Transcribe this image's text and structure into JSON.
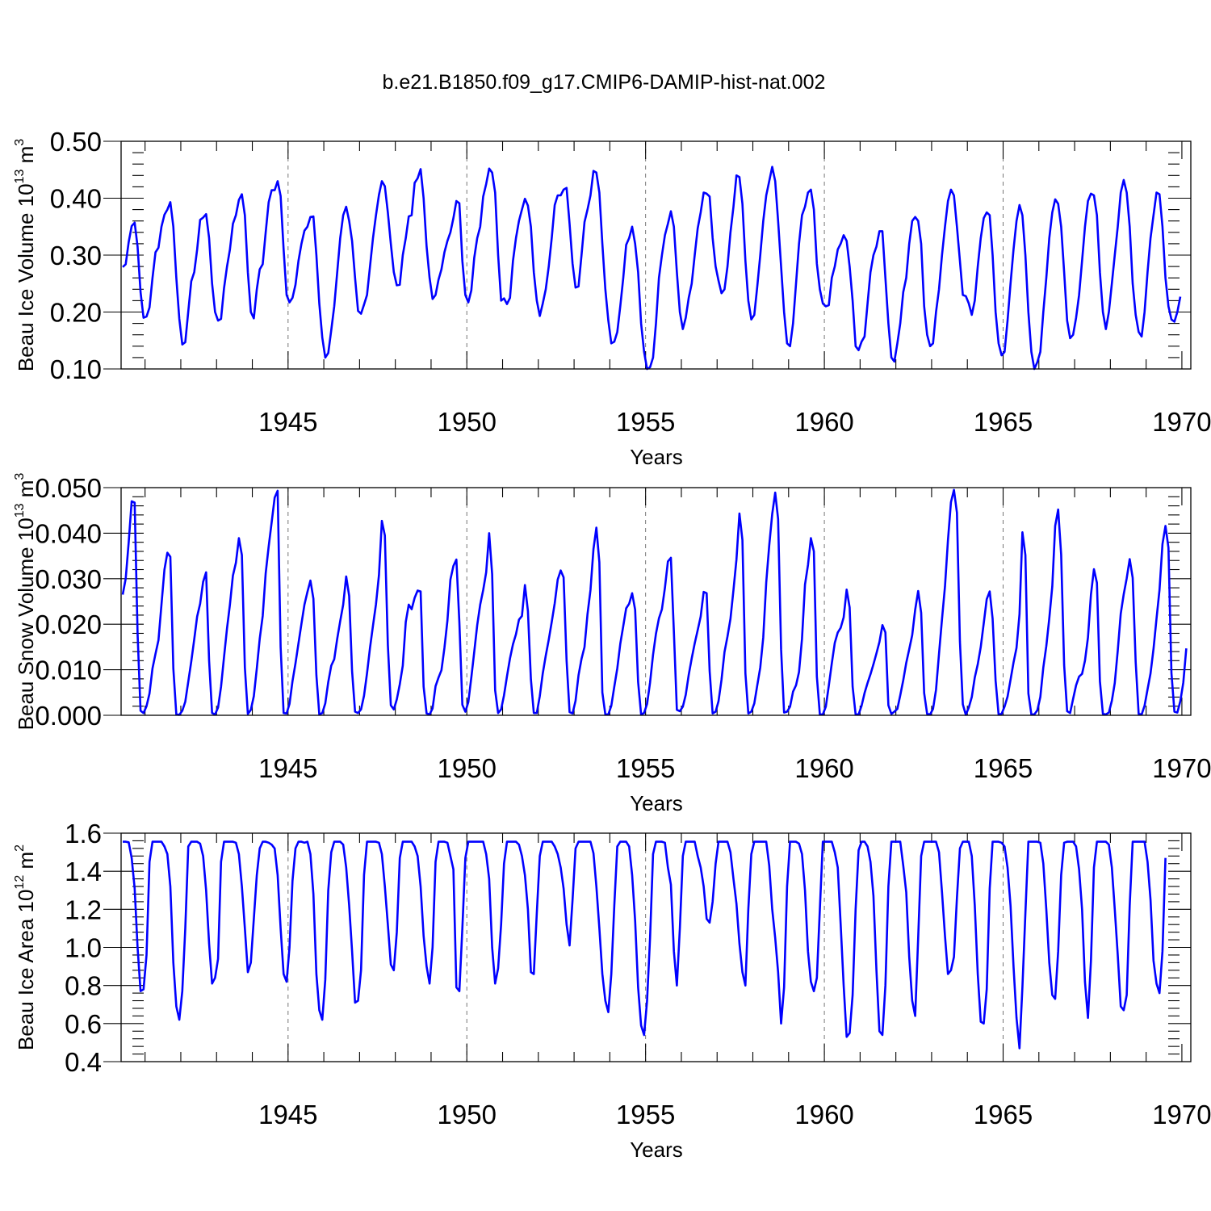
{
  "title": "b.e21.B1850.f09_g17.CMIP6-DAMIP-hist-nat.002",
  "chart_data": [
    {
      "type": "line",
      "id": "ice_volume",
      "title": "b.e21.B1850.f09_g17.CMIP6-DAMIP-hist-nat.002",
      "xlabel": "Years",
      "ylabel_main": "Beau Ice Volume 10",
      "ylabel_exp": "13",
      "ylabel_unit": " m",
      "ylabel_unit_exp": "3",
      "xlim": [
        1940.33,
        1970.25
      ],
      "ylim": [
        0.1,
        0.5
      ],
      "grid_x": [
        1945,
        1950,
        1955,
        1960,
        1965
      ],
      "xticks": [
        1945,
        1950,
        1955,
        1960,
        1965,
        1970
      ],
      "xtick_labels": [
        "1945",
        "1950",
        "1955",
        "1960",
        "1965",
        "1970"
      ],
      "yticks": [
        0.1,
        0.2,
        0.3,
        0.4,
        0.5
      ],
      "ytick_labels": [
        "0.10",
        "0.20",
        "0.30",
        "0.40",
        "0.50"
      ],
      "x_start": 1940.375,
      "x_step": 0.08333,
      "values": [
        0.279,
        0.284,
        0.323,
        0.351,
        0.357,
        0.315,
        0.235,
        0.19,
        0.192,
        0.208,
        0.26,
        0.305,
        0.313,
        0.35,
        0.371,
        0.38,
        0.393,
        0.35,
        0.26,
        0.188,
        0.143,
        0.147,
        0.201,
        0.254,
        0.27,
        0.31,
        0.362,
        0.366,
        0.372,
        0.33,
        0.25,
        0.2,
        0.185,
        0.188,
        0.242,
        0.28,
        0.31,
        0.355,
        0.37,
        0.397,
        0.407,
        0.37,
        0.27,
        0.2,
        0.189,
        0.24,
        0.275,
        0.284,
        0.34,
        0.393,
        0.414,
        0.414,
        0.43,
        0.404,
        0.31,
        0.23,
        0.217,
        0.225,
        0.248,
        0.29,
        0.32,
        0.343,
        0.35,
        0.367,
        0.368,
        0.3,
        0.215,
        0.155,
        0.12,
        0.128,
        0.168,
        0.21,
        0.27,
        0.33,
        0.37,
        0.385,
        0.36,
        0.325,
        0.26,
        0.202,
        0.197,
        0.213,
        0.23,
        0.28,
        0.33,
        0.37,
        0.406,
        0.43,
        0.421,
        0.375,
        0.32,
        0.27,
        0.247,
        0.248,
        0.3,
        0.33,
        0.368,
        0.37,
        0.427,
        0.435,
        0.451,
        0.4,
        0.315,
        0.26,
        0.223,
        0.23,
        0.257,
        0.275,
        0.305,
        0.325,
        0.34,
        0.365,
        0.395,
        0.391,
        0.29,
        0.23,
        0.217,
        0.238,
        0.295,
        0.33,
        0.35,
        0.403,
        0.425,
        0.452,
        0.445,
        0.41,
        0.3,
        0.22,
        0.224,
        0.214,
        0.225,
        0.29,
        0.33,
        0.36,
        0.38,
        0.399,
        0.387,
        0.35,
        0.27,
        0.22,
        0.193,
        0.215,
        0.24,
        0.28,
        0.33,
        0.388,
        0.405,
        0.405,
        0.415,
        0.418,
        0.355,
        0.285,
        0.243,
        0.245,
        0.3,
        0.358,
        0.38,
        0.405,
        0.448,
        0.445,
        0.41,
        0.32,
        0.24,
        0.185,
        0.145,
        0.148,
        0.165,
        0.21,
        0.26,
        0.318,
        0.33,
        0.35,
        0.32,
        0.27,
        0.18,
        0.13,
        0.1,
        0.103,
        0.12,
        0.18,
        0.26,
        0.3,
        0.335,
        0.355,
        0.377,
        0.35,
        0.27,
        0.2,
        0.17,
        0.19,
        0.225,
        0.25,
        0.3,
        0.347,
        0.375,
        0.41,
        0.408,
        0.403,
        0.33,
        0.28,
        0.255,
        0.233,
        0.24,
        0.28,
        0.34,
        0.385,
        0.44,
        0.437,
        0.39,
        0.29,
        0.22,
        0.187,
        0.195,
        0.245,
        0.3,
        0.36,
        0.405,
        0.43,
        0.455,
        0.43,
        0.36,
        0.28,
        0.2,
        0.145,
        0.14,
        0.18,
        0.25,
        0.32,
        0.37,
        0.385,
        0.41,
        0.415,
        0.38,
        0.285,
        0.24,
        0.215,
        0.21,
        0.212,
        0.26,
        0.28,
        0.31,
        0.32,
        0.335,
        0.325,
        0.28,
        0.22,
        0.14,
        0.133,
        0.148,
        0.157,
        0.215,
        0.27,
        0.3,
        0.315,
        0.342,
        0.342,
        0.26,
        0.18,
        0.12,
        0.113,
        0.145,
        0.18,
        0.235,
        0.26,
        0.32,
        0.36,
        0.367,
        0.36,
        0.32,
        0.21,
        0.16,
        0.14,
        0.145,
        0.2,
        0.24,
        0.3,
        0.35,
        0.395,
        0.415,
        0.405,
        0.35,
        0.29,
        0.23,
        0.228,
        0.215,
        0.195,
        0.22,
        0.28,
        0.33,
        0.365,
        0.375,
        0.37,
        0.3,
        0.2,
        0.145,
        0.124,
        0.13,
        0.185,
        0.25,
        0.31,
        0.36,
        0.388,
        0.37,
        0.3,
        0.2,
        0.13,
        0.1,
        0.112,
        0.13,
        0.2,
        0.26,
        0.33,
        0.375,
        0.398,
        0.39,
        0.35,
        0.27,
        0.185,
        0.154,
        0.16,
        0.19,
        0.23,
        0.29,
        0.35,
        0.395,
        0.408,
        0.405,
        0.37,
        0.27,
        0.2,
        0.17,
        0.2,
        0.25,
        0.3,
        0.35,
        0.41,
        0.432,
        0.41,
        0.35,
        0.25,
        0.195,
        0.165,
        0.157,
        0.2,
        0.27,
        0.33,
        0.37,
        0.41,
        0.407,
        0.35,
        0.26,
        0.21,
        0.187,
        0.183,
        0.2,
        0.227
      ]
    },
    {
      "type": "line",
      "id": "snow_volume",
      "xlabel": "Years",
      "ylabel_main": "Beau Snow Volume 10",
      "ylabel_exp": "13",
      "ylabel_unit": " m",
      "ylabel_unit_exp": "3",
      "xlim": [
        1940.33,
        1970.25
      ],
      "ylim": [
        0.0,
        0.05
      ],
      "grid_x": [
        1945,
        1950,
        1955,
        1960,
        1965
      ],
      "xticks": [
        1945,
        1950,
        1955,
        1960,
        1965,
        1970
      ],
      "xtick_labels": [
        "1945",
        "1950",
        "1955",
        "1960",
        "1965",
        "1970"
      ],
      "yticks": [
        0.0,
        0.01,
        0.02,
        0.03,
        0.04,
        0.05
      ],
      "ytick_labels": [
        "0.000",
        "0.010",
        "0.020",
        "0.030",
        "0.040",
        "0.050"
      ],
      "x_start": 1940.375,
      "x_step": 0.08333,
      "values": [
        0.0265,
        0.03,
        0.038,
        0.047,
        0.0467,
        0.018,
        0.001,
        0.0005,
        0.002,
        0.0048,
        0.0103,
        0.0135,
        0.0165,
        0.0243,
        0.032,
        0.0357,
        0.0348,
        0.0103,
        0.0002,
        0.0001,
        0.001,
        0.003,
        0.0074,
        0.0118,
        0.0167,
        0.0217,
        0.0245,
        0.0293,
        0.0314,
        0.012,
        0.0005,
        0.0002,
        0.0017,
        0.0063,
        0.0128,
        0.0191,
        0.0243,
        0.0307,
        0.0335,
        0.0389,
        0.0352,
        0.0105,
        0.0003,
        0.0012,
        0.0042,
        0.0103,
        0.0168,
        0.0218,
        0.0312,
        0.0371,
        0.0424,
        0.0478,
        0.0493,
        0.015,
        0.0005,
        0.0004,
        0.0025,
        0.0075,
        0.0114,
        0.0158,
        0.0201,
        0.0243,
        0.0271,
        0.0296,
        0.0256,
        0.0088,
        0.0002,
        0.0005,
        0.0026,
        0.0073,
        0.0109,
        0.0123,
        0.0168,
        0.0207,
        0.0243,
        0.0305,
        0.0262,
        0.0097,
        0.0008,
        0.0005,
        0.0013,
        0.0043,
        0.0092,
        0.0148,
        0.0197,
        0.0244,
        0.0308,
        0.0427,
        0.0395,
        0.0155,
        0.0022,
        0.0013,
        0.0035,
        0.0068,
        0.0109,
        0.0205,
        0.0243,
        0.0233,
        0.0258,
        0.0274,
        0.0272,
        0.0063,
        0.0004,
        0.0002,
        0.0015,
        0.0064,
        0.0083,
        0.0099,
        0.0148,
        0.0208,
        0.0298,
        0.0328,
        0.0342,
        0.0204,
        0.0023,
        0.0008,
        0.0029,
        0.0083,
        0.0139,
        0.0198,
        0.0243,
        0.0275,
        0.0314,
        0.04,
        0.031,
        0.0055,
        0.0005,
        0.0013,
        0.0044,
        0.0086,
        0.0125,
        0.0156,
        0.0178,
        0.021,
        0.0218,
        0.0286,
        0.0229,
        0.0079,
        0.0005,
        0.0005,
        0.0042,
        0.0092,
        0.0131,
        0.0166,
        0.0205,
        0.0246,
        0.0298,
        0.0318,
        0.0303,
        0.012,
        0.0007,
        0.0004,
        0.0032,
        0.0088,
        0.0124,
        0.015,
        0.0222,
        0.0275,
        0.0365,
        0.0412,
        0.0336,
        0.005,
        0.0002,
        0.0002,
        0.0021,
        0.0063,
        0.0103,
        0.0157,
        0.0196,
        0.0235,
        0.0245,
        0.0268,
        0.0232,
        0.0073,
        0.0002,
        0.0005,
        0.0025,
        0.0072,
        0.0133,
        0.0179,
        0.0213,
        0.0233,
        0.028,
        0.0338,
        0.0346,
        0.0183,
        0.0012,
        0.0009,
        0.0019,
        0.0045,
        0.0089,
        0.0125,
        0.0158,
        0.0187,
        0.0217,
        0.0271,
        0.0268,
        0.0097,
        0.0004,
        0.0008,
        0.0031,
        0.0078,
        0.0139,
        0.0173,
        0.0212,
        0.0275,
        0.0342,
        0.0443,
        0.0385,
        0.0092,
        0.0004,
        0.0008,
        0.0026,
        0.0066,
        0.0105,
        0.0171,
        0.0292,
        0.0373,
        0.0442,
        0.0489,
        0.0431,
        0.0145,
        0.0006,
        0.0008,
        0.0019,
        0.0052,
        0.0066,
        0.0095,
        0.0168,
        0.0287,
        0.033,
        0.0389,
        0.036,
        0.0085,
        0.0002,
        0.0002,
        0.0019,
        0.0065,
        0.0114,
        0.0159,
        0.0182,
        0.0192,
        0.0215,
        0.0276,
        0.0237,
        0.0063,
        0.0002,
        0.0002,
        0.0021,
        0.0049,
        0.0071,
        0.009,
        0.0112,
        0.0136,
        0.0161,
        0.0198,
        0.0182,
        0.0022,
        0.0003,
        0.0008,
        0.0014,
        0.0044,
        0.0077,
        0.0115,
        0.0145,
        0.0176,
        0.0232,
        0.0273,
        0.0225,
        0.0049,
        0.0003,
        0.0002,
        0.0014,
        0.0056,
        0.0135,
        0.0211,
        0.0283,
        0.0385,
        0.0468,
        0.0495,
        0.0445,
        0.0162,
        0.0024,
        0.0001,
        0.0017,
        0.004,
        0.0083,
        0.0112,
        0.015,
        0.0202,
        0.0255,
        0.0272,
        0.0212,
        0.0076,
        0.0002,
        0.0003,
        0.0019,
        0.0041,
        0.0078,
        0.0116,
        0.0148,
        0.0222,
        0.0402,
        0.0352,
        0.0048,
        0.0002,
        0.0002,
        0.0011,
        0.004,
        0.0105,
        0.0152,
        0.0213,
        0.0283,
        0.0416,
        0.0452,
        0.0353,
        0.011,
        0.0009,
        0.0005,
        0.0036,
        0.0066,
        0.0085,
        0.0091,
        0.012,
        0.0171,
        0.0265,
        0.0321,
        0.0291,
        0.0075,
        0.0003,
        0.0002,
        0.0006,
        0.0032,
        0.0071,
        0.0142,
        0.0223,
        0.0266,
        0.0301,
        0.0343,
        0.0302,
        0.0117,
        0.0003,
        0.0002,
        0.0021,
        0.0057,
        0.0092,
        0.0146,
        0.0212,
        0.0275,
        0.0376,
        0.0416,
        0.0368,
        0.0093,
        0.0008,
        0.0006,
        0.0031,
        0.0072,
        0.0147
      ]
    },
    {
      "type": "line",
      "id": "ice_area",
      "xlabel": "Years",
      "ylabel_main": "Beau Ice Area 10",
      "ylabel_exp": "12",
      "ylabel_unit": " m",
      "ylabel_unit_exp": "2",
      "xlim": [
        1940.33,
        1970.25
      ],
      "ylim": [
        0.4,
        1.6
      ],
      "grid_x": [
        1945,
        1950,
        1955,
        1960,
        1965
      ],
      "xticks": [
        1945,
        1950,
        1955,
        1960,
        1965,
        1970
      ],
      "xtick_labels": [
        "1945",
        "1950",
        "1955",
        "1960",
        "1965",
        "1970"
      ],
      "yticks": [
        0.4,
        0.6,
        0.8,
        1.0,
        1.2,
        1.4,
        1.6
      ],
      "ytick_labels": [
        "0.4",
        "0.6",
        "0.8",
        "1.0",
        "1.2",
        "1.4",
        "1.6"
      ],
      "x_start": 1940.375,
      "x_step": 0.08333,
      "values": [
        1.555,
        1.555,
        1.552,
        1.47,
        1.31,
        1.0,
        0.77,
        0.78,
        0.96,
        1.45,
        1.555,
        1.555,
        1.555,
        1.555,
        1.53,
        1.49,
        1.32,
        0.92,
        0.69,
        0.62,
        0.77,
        1.1,
        1.53,
        1.555,
        1.555,
        1.555,
        1.545,
        1.48,
        1.3,
        1.02,
        0.81,
        0.84,
        0.94,
        1.45,
        1.555,
        1.555,
        1.555,
        1.555,
        1.55,
        1.49,
        1.32,
        1.1,
        0.87,
        0.92,
        1.15,
        1.38,
        1.52,
        1.555,
        1.555,
        1.55,
        1.54,
        1.52,
        1.38,
        1.1,
        0.86,
        0.82,
        1.0,
        1.35,
        1.52,
        1.555,
        1.555,
        1.55,
        1.555,
        1.49,
        1.28,
        0.86,
        0.67,
        0.62,
        0.83,
        1.3,
        1.5,
        1.555,
        1.555,
        1.555,
        1.54,
        1.42,
        1.22,
        0.98,
        0.71,
        0.72,
        0.88,
        1.38,
        1.555,
        1.555,
        1.555,
        1.555,
        1.55,
        1.49,
        1.32,
        1.12,
        0.91,
        0.88,
        1.08,
        1.47,
        1.555,
        1.555,
        1.555,
        1.555,
        1.53,
        1.48,
        1.32,
        1.06,
        0.9,
        0.81,
        1.0,
        1.45,
        1.555,
        1.555,
        1.555,
        1.55,
        1.48,
        1.41,
        0.79,
        0.77,
        1.1,
        1.47,
        1.555,
        1.555,
        1.555,
        1.555,
        1.555,
        1.555,
        1.49,
        1.36,
        1.0,
        0.81,
        0.89,
        1.12,
        1.44,
        1.555,
        1.555,
        1.555,
        1.555,
        1.54,
        1.48,
        1.38,
        1.2,
        0.87,
        0.86,
        1.18,
        1.48,
        1.555,
        1.555,
        1.555,
        1.555,
        1.53,
        1.49,
        1.42,
        1.31,
        1.12,
        1.01,
        1.25,
        1.52,
        1.555,
        1.555,
        1.555,
        1.555,
        1.555,
        1.495,
        1.32,
        1.1,
        0.86,
        0.72,
        0.66,
        0.86,
        1.22,
        1.53,
        1.555,
        1.555,
        1.555,
        1.53,
        1.38,
        1.14,
        0.79,
        0.59,
        0.54,
        0.72,
        1.05,
        1.49,
        1.555,
        1.555,
        1.555,
        1.55,
        1.42,
        1.33,
        0.98,
        0.8,
        1.1,
        1.48,
        1.555,
        1.555,
        1.555,
        1.555,
        1.48,
        1.42,
        1.32,
        1.15,
        1.13,
        1.24,
        1.44,
        1.555,
        1.555,
        1.555,
        1.555,
        1.5,
        1.36,
        1.23,
        1.02,
        0.87,
        0.8,
        1.2,
        1.49,
        1.555,
        1.555,
        1.555,
        1.555,
        1.555,
        1.43,
        1.2,
        1.05,
        0.87,
        0.6,
        0.79,
        1.32,
        1.555,
        1.555,
        1.555,
        1.545,
        1.49,
        1.3,
        0.98,
        0.82,
        0.77,
        0.84,
        1.2,
        1.555,
        1.555,
        1.555,
        1.555,
        1.5,
        1.42,
        1.12,
        0.8,
        0.53,
        0.55,
        0.75,
        1.2,
        1.51,
        1.555,
        1.555,
        1.53,
        1.45,
        1.27,
        0.88,
        0.56,
        0.54,
        0.8,
        1.32,
        1.555,
        1.555,
        1.555,
        1.555,
        1.43,
        1.29,
        0.95,
        0.72,
        0.64,
        1.05,
        1.48,
        1.555,
        1.555,
        1.555,
        1.555,
        1.555,
        1.5,
        1.29,
        1.06,
        0.86,
        0.88,
        0.95,
        1.26,
        1.52,
        1.555,
        1.555,
        1.555,
        1.48,
        1.22,
        0.86,
        0.61,
        0.6,
        0.78,
        1.31,
        1.555,
        1.555,
        1.555,
        1.55,
        1.53,
        1.42,
        1.22,
        0.9,
        0.63,
        0.47,
        0.79,
        1.18,
        1.555,
        1.555,
        1.555,
        1.555,
        1.55,
        1.44,
        1.2,
        0.92,
        0.75,
        0.73,
        0.98,
        1.38,
        1.55,
        1.555,
        1.555,
        1.555,
        1.53,
        1.41,
        1.2,
        0.82,
        0.63,
        0.93,
        1.42,
        1.555,
        1.555,
        1.555,
        1.555,
        1.54,
        1.42,
        1.2,
        0.96,
        0.69,
        0.67,
        0.75,
        1.22,
        1.555,
        1.555,
        1.555,
        1.555,
        1.555,
        1.45,
        1.25,
        0.93,
        0.81,
        0.76,
        0.98,
        1.47
      ]
    }
  ]
}
